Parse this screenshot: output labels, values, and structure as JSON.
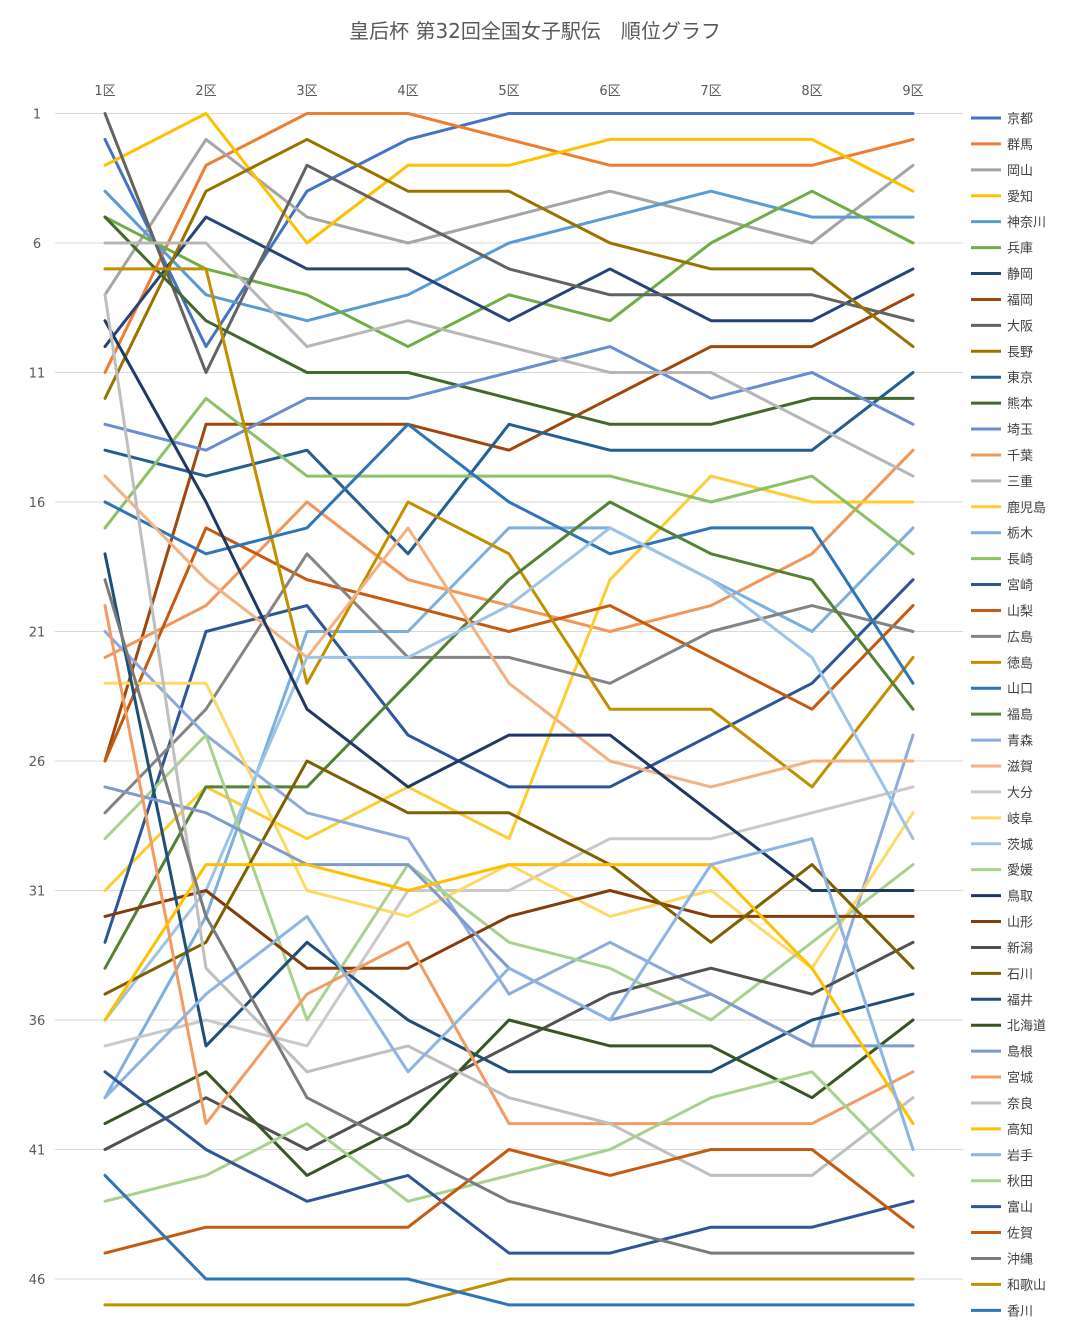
{
  "chart_data": {
    "type": "line",
    "title": "皇后杯 第32回全国女子駅伝　順位グラフ",
    "xlabel": "",
    "ylabel": "",
    "categories": [
      "1区",
      "2区",
      "3区",
      "4区",
      "5区",
      "6区",
      "7区",
      "8区",
      "9区"
    ],
    "y_ticks": [
      "1",
      "6",
      "11",
      "16",
      "21",
      "26",
      "31",
      "36",
      "41",
      "46"
    ],
    "y_tick_values": [
      1,
      6,
      11,
      16,
      21,
      26,
      31,
      36,
      41,
      46
    ],
    "ylim": [
      1,
      47
    ],
    "y_reversed": true,
    "grid": true,
    "legend_position": "right",
    "series": [
      {
        "name": "京都",
        "color": "#4472C4",
        "values": [
          2,
          10,
          4,
          2,
          1,
          1,
          1,
          1,
          1
        ]
      },
      {
        "name": "群馬",
        "color": "#ED7D31",
        "values": [
          11,
          3,
          1,
          1,
          2,
          3,
          3,
          3,
          2
        ]
      },
      {
        "name": "岡山",
        "color": "#A5A5A5",
        "values": [
          8,
          2,
          5,
          6,
          5,
          4,
          5,
          6,
          3
        ]
      },
      {
        "name": "愛知",
        "color": "#FFC000",
        "values": [
          3,
          1,
          6,
          3,
          3,
          2,
          2,
          2,
          4
        ]
      },
      {
        "name": "神奈川",
        "color": "#5B9BD5",
        "values": [
          4,
          8,
          9,
          8,
          6,
          5,
          4,
          5,
          5
        ]
      },
      {
        "name": "兵庫",
        "color": "#70AD47",
        "values": [
          5,
          7,
          8,
          10,
          8,
          9,
          6,
          4,
          6
        ]
      },
      {
        "name": "静岡",
        "color": "#264478",
        "values": [
          10,
          5,
          7,
          7,
          9,
          7,
          9,
          9,
          7
        ]
      },
      {
        "name": "福岡",
        "color": "#9E480E",
        "values": [
          26,
          13,
          13,
          13,
          14,
          12,
          10,
          10,
          8
        ]
      },
      {
        "name": "大阪",
        "color": "#636363",
        "values": [
          1,
          11,
          3,
          5,
          7,
          8,
          8,
          8,
          9
        ]
      },
      {
        "name": "長野",
        "color": "#997300",
        "values": [
          12,
          4,
          2,
          4,
          4,
          6,
          7,
          7,
          10
        ]
      },
      {
        "name": "東京",
        "color": "#255E91",
        "values": [
          14,
          15,
          14,
          18,
          13,
          14,
          14,
          14,
          11
        ]
      },
      {
        "name": "熊本",
        "color": "#43682B",
        "values": [
          5,
          9,
          11,
          11,
          12,
          13,
          13,
          12,
          12
        ]
      },
      {
        "name": "埼玉",
        "color": "#698ED0",
        "values": [
          13,
          14,
          12,
          12,
          11,
          10,
          12,
          11,
          13
        ]
      },
      {
        "name": "千葉",
        "color": "#F1975A",
        "values": [
          22,
          20,
          16,
          19,
          20,
          21,
          20,
          18,
          14
        ]
      },
      {
        "name": "三重",
        "color": "#B7B7B7",
        "values": [
          6,
          6,
          10,
          9,
          10,
          11,
          11,
          13,
          15
        ]
      },
      {
        "name": "鹿児島",
        "color": "#FFCD33",
        "values": [
          31,
          27,
          29,
          27,
          29,
          19,
          15,
          16,
          16
        ]
      },
      {
        "name": "栃木",
        "color": "#7CAFDD",
        "values": [
          39,
          32,
          21,
          21,
          17,
          17,
          19,
          21,
          17
        ]
      },
      {
        "name": "長崎",
        "color": "#8CC168",
        "values": [
          17,
          12,
          15,
          15,
          15,
          15,
          16,
          15,
          18
        ]
      },
      {
        "name": "宮崎",
        "color": "#2E5597",
        "values": [
          33,
          21,
          20,
          25,
          27,
          27,
          25,
          23,
          19
        ]
      },
      {
        "name": "山梨",
        "color": "#C55A11",
        "values": [
          26,
          17,
          19,
          20,
          21,
          20,
          22,
          24,
          20
        ]
      },
      {
        "name": "広島",
        "color": "#848484",
        "values": [
          28,
          24,
          18,
          22,
          22,
          23,
          21,
          20,
          21
        ]
      },
      {
        "name": "徳島",
        "color": "#C09000",
        "values": [
          7,
          7,
          23,
          16,
          18,
          24,
          24,
          27,
          22
        ]
      },
      {
        "name": "山口",
        "color": "#2F75B5",
        "values": [
          16,
          18,
          17,
          13,
          16,
          18,
          17,
          17,
          23
        ]
      },
      {
        "name": "福島",
        "color": "#548235",
        "values": [
          34,
          27,
          27,
          23,
          19,
          16,
          18,
          19,
          24
        ]
      },
      {
        "name": "青森",
        "color": "#8FAADC",
        "values": [
          21,
          25,
          28,
          29,
          35,
          33,
          35,
          37,
          25
        ]
      },
      {
        "name": "滋賀",
        "color": "#F4B183",
        "values": [
          15,
          19,
          22,
          17,
          23,
          26,
          27,
          26,
          26
        ]
      },
      {
        "name": "大分",
        "color": "#C9C9C9",
        "values": [
          37,
          36,
          37,
          31,
          31,
          29,
          29,
          28,
          27
        ]
      },
      {
        "name": "岐阜",
        "color": "#FFD966",
        "values": [
          23,
          23,
          31,
          32,
          30,
          32,
          31,
          34,
          28
        ]
      },
      {
        "name": "茨城",
        "color": "#9DC3E6",
        "values": [
          36,
          31,
          22,
          22,
          20,
          17,
          19,
          22,
          29
        ]
      },
      {
        "name": "愛媛",
        "color": "#A9D18E",
        "values": [
          29,
          25,
          36,
          30,
          33,
          34,
          36,
          33,
          30
        ]
      },
      {
        "name": "鳥取",
        "color": "#203864",
        "values": [
          9,
          16,
          24,
          27,
          25,
          25,
          28,
          31,
          31
        ]
      },
      {
        "name": "山形",
        "color": "#843C0C",
        "values": [
          32,
          31,
          34,
          34,
          32,
          31,
          32,
          32,
          32
        ]
      },
      {
        "name": "新潟",
        "color": "#525252",
        "values": [
          41,
          39,
          41,
          39,
          37,
          35,
          34,
          35,
          33
        ]
      },
      {
        "name": "石川",
        "color": "#7F6000",
        "values": [
          35,
          33,
          26,
          28,
          28,
          30,
          33,
          30,
          34
        ]
      },
      {
        "name": "福井",
        "color": "#1F4E79",
        "values": [
          18,
          37,
          33,
          36,
          38,
          38,
          38,
          36,
          35
        ]
      },
      {
        "name": "北海道",
        "color": "#375623",
        "values": [
          40,
          38,
          42,
          40,
          36,
          37,
          37,
          39,
          36
        ]
      },
      {
        "name": "島根",
        "color": "#7F9ACB",
        "values": [
          27,
          28,
          30,
          30,
          34,
          36,
          35,
          37,
          37
        ]
      },
      {
        "name": "宮城",
        "color": "#F19C65",
        "values": [
          20,
          40,
          35,
          33,
          40,
          40,
          40,
          40,
          38
        ]
      },
      {
        "name": "奈良",
        "color": "#BFBFBF",
        "values": [
          8,
          34,
          38,
          37,
          39,
          40,
          42,
          42,
          39
        ]
      },
      {
        "name": "高知",
        "color": "#FFC000",
        "values": [
          36,
          30,
          30,
          31,
          30,
          30,
          30,
          34,
          40
        ]
      },
      {
        "name": "岩手",
        "color": "#8EB4E3",
        "values": [
          39,
          35,
          32,
          38,
          34,
          36,
          30,
          29,
          41
        ]
      },
      {
        "name": "秋田",
        "color": "#A9D18E",
        "values": [
          43,
          42,
          40,
          43,
          42,
          41,
          39,
          38,
          42
        ]
      },
      {
        "name": "富山",
        "color": "#2F5597",
        "values": [
          38,
          41,
          43,
          42,
          45,
          45,
          44,
          44,
          43
        ]
      },
      {
        "name": "佐賀",
        "color": "#C55A11",
        "values": [
          45,
          44,
          44,
          44,
          41,
          42,
          41,
          41,
          44
        ]
      },
      {
        "name": "沖縄",
        "color": "#7B7B7B",
        "values": [
          19,
          32,
          39,
          41,
          43,
          44,
          45,
          45,
          45
        ]
      },
      {
        "name": "和歌山",
        "color": "#BF9000",
        "values": [
          47,
          47,
          47,
          47,
          46,
          46,
          46,
          46,
          46
        ]
      },
      {
        "name": "香川",
        "color": "#2E75B6",
        "values": [
          42,
          46,
          46,
          46,
          47,
          47,
          47,
          47,
          47
        ]
      }
    ]
  }
}
